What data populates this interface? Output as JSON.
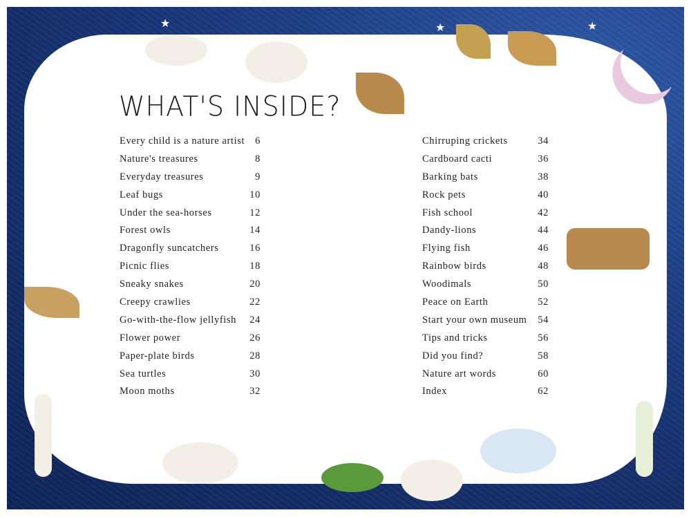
{
  "title": "WHAT'S INSIDE?",
  "contents_left": [
    {
      "label": "Every child is a nature artist",
      "page": "6"
    },
    {
      "label": "Nature's treasures",
      "page": "8"
    },
    {
      "label": "Everyday treasures",
      "page": "9"
    },
    {
      "label": "Leaf bugs",
      "page": "10"
    },
    {
      "label": "Under the sea-horses",
      "page": "12"
    },
    {
      "label": "Forest owls",
      "page": "14"
    },
    {
      "label": "Dragonfly suncatchers",
      "page": "16"
    },
    {
      "label": "Picnic flies",
      "page": "18"
    },
    {
      "label": "Sneaky snakes",
      "page": "20"
    },
    {
      "label": "Creepy crawlies",
      "page": "22"
    },
    {
      "label": "Go-with-the-flow jellyfish",
      "page": "24"
    },
    {
      "label": "Flower power",
      "page": "26"
    },
    {
      "label": "Paper-plate birds",
      "page": "28"
    },
    {
      "label": "Sea turtles",
      "page": "30"
    },
    {
      "label": "Moon moths",
      "page": "32"
    }
  ],
  "contents_right": [
    {
      "label": "Chirruping crickets",
      "page": "34"
    },
    {
      "label": "Cardboard cacti",
      "page": "36"
    },
    {
      "label": "Barking bats",
      "page": "38"
    },
    {
      "label": "Rock pets",
      "page": "40"
    },
    {
      "label": "Fish school",
      "page": "42"
    },
    {
      "label": "Dandy-lions",
      "page": "44"
    },
    {
      "label": "Flying fish",
      "page": "46"
    },
    {
      "label": "Rainbow birds",
      "page": "48"
    },
    {
      "label": "Woodimals",
      "page": "50"
    },
    {
      "label": "Peace on Earth",
      "page": "52"
    },
    {
      "label": "Start your own museum",
      "page": "54"
    },
    {
      "label": "Tips and tricks",
      "page": "56"
    },
    {
      "label": "Did you find?",
      "page": "58"
    },
    {
      "label": "Nature art words",
      "page": "60"
    },
    {
      "label": "Index",
      "page": "62"
    }
  ],
  "colors": {
    "background": "#1d3f86",
    "panel": "#ffffff",
    "text": "#222222"
  }
}
